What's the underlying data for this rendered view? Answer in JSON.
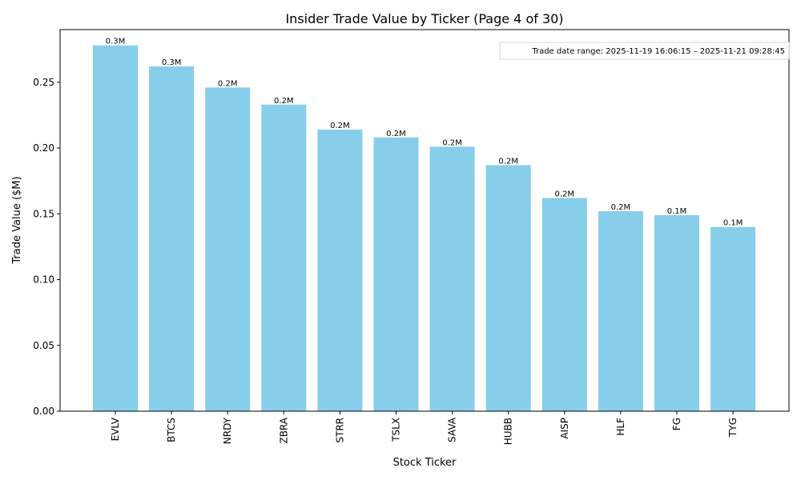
{
  "chart_data": {
    "type": "bar",
    "title": "Insider Trade Value by Ticker (Page 4 of 30)",
    "xlabel": "Stock Ticker",
    "ylabel": "Trade Value ($M)",
    "ylim": [
      0,
      0.29
    ],
    "yticks": [
      0.0,
      0.05,
      0.1,
      0.15,
      0.2,
      0.25
    ],
    "categories": [
      "EVLV",
      "BTCS",
      "NRDY",
      "ZBRA",
      "STRR",
      "TSLX",
      "SAVA",
      "HUBB",
      "AISP",
      "HLF",
      "FG",
      "TYG"
    ],
    "values": [
      0.278,
      0.262,
      0.246,
      0.233,
      0.214,
      0.208,
      0.201,
      0.187,
      0.162,
      0.152,
      0.149,
      0.14
    ],
    "bar_labels": [
      "0.3M",
      "0.3M",
      "0.2M",
      "0.2M",
      "0.2M",
      "0.2M",
      "0.2M",
      "0.2M",
      "0.2M",
      "0.2M",
      "0.1M",
      "0.1M"
    ],
    "annotation": "Trade date range: 2025-11-19 16:06:15 – 2025-11-21 09:28:45",
    "grid": false,
    "bar_color": "#87CEEB"
  }
}
